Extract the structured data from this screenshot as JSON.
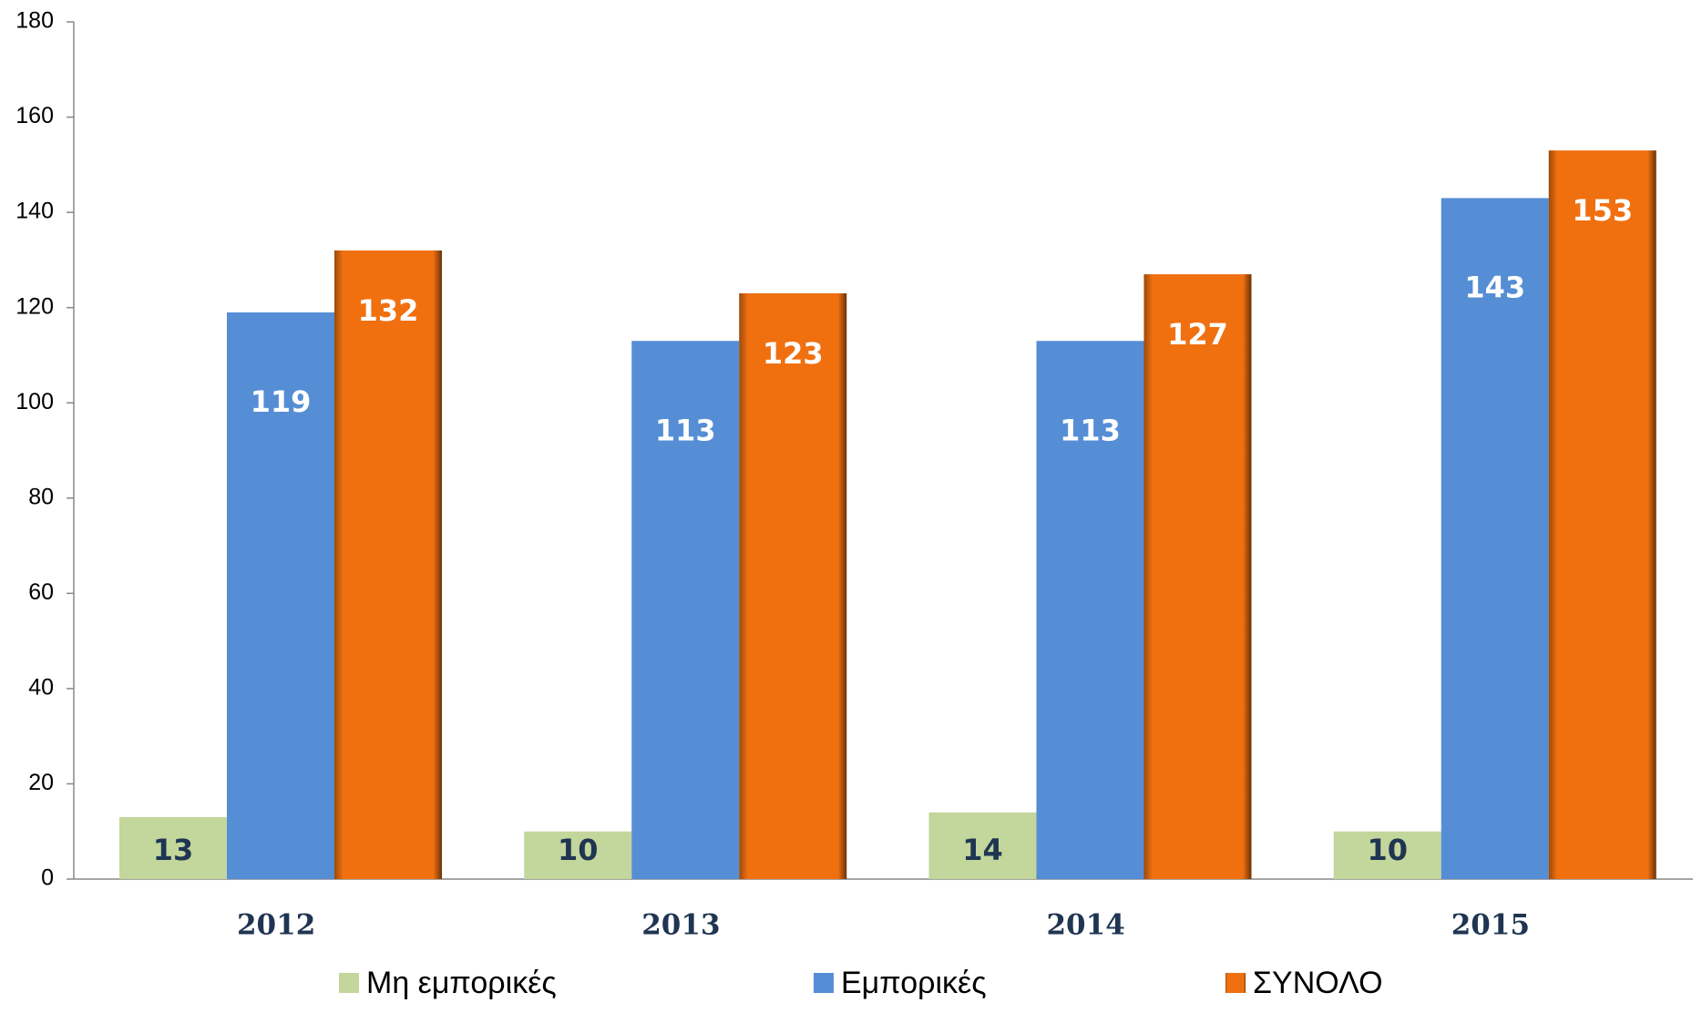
{
  "chart_data": {
    "type": "bar",
    "categories": [
      "2012",
      "2013",
      "2014",
      "2015"
    ],
    "series": [
      {
        "name": "Μη εμπορικές",
        "color": "#c3d69b",
        "values": [
          13,
          10,
          14,
          10
        ]
      },
      {
        "name": "Εμπορικές",
        "color": "#558ed5",
        "values": [
          119,
          113,
          113,
          143
        ]
      },
      {
        "name": "ΣΥΝΟΛΟ",
        "color": "#f07010",
        "values": [
          132,
          123,
          127,
          153
        ]
      }
    ],
    "ylim": [
      0,
      180
    ],
    "yticks": [
      0,
      20,
      40,
      60,
      80,
      100,
      120,
      140,
      160,
      180
    ],
    "grid": false,
    "legend": "bottom"
  }
}
